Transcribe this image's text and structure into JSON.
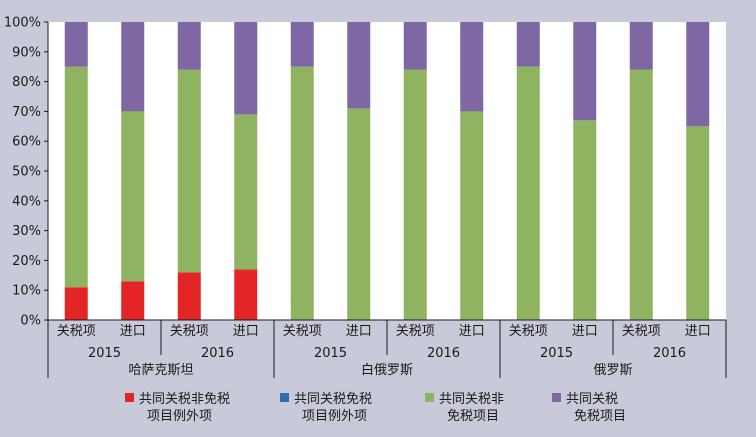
{
  "chart_data": {
    "type": "bar",
    "stacked": true,
    "ylim": [
      0,
      100
    ],
    "yticks": [
      "0%",
      "10%",
      "20%",
      "30%",
      "40%",
      "50%",
      "60%",
      "70%",
      "80%",
      "90%",
      "100%"
    ],
    "categories": [
      "关税项",
      "进口",
      "关税项",
      "进口",
      "关税项",
      "进口",
      "关税项",
      "进口",
      "关税项",
      "进口",
      "关税项",
      "进口"
    ],
    "years": [
      {
        "label": "2015",
        "span": [
          0,
          1
        ]
      },
      {
        "label": "2016",
        "span": [
          2,
          3
        ]
      },
      {
        "label": "2015",
        "span": [
          4,
          5
        ]
      },
      {
        "label": "2016",
        "span": [
          6,
          7
        ]
      },
      {
        "label": "2015",
        "span": [
          8,
          9
        ]
      },
      {
        "label": "2016",
        "span": [
          10,
          11
        ]
      }
    ],
    "countries": [
      {
        "label": "哈萨克斯坦",
        "span": [
          0,
          3
        ]
      },
      {
        "label": "白俄罗斯",
        "span": [
          4,
          7
        ]
      },
      {
        "label": "俄罗斯",
        "span": [
          8,
          11
        ]
      }
    ],
    "series": [
      {
        "name": "共同关税非免税项目例外项",
        "color": "#e32526",
        "values": [
          11,
          13,
          16,
          17,
          0,
          0,
          0,
          0,
          0,
          0,
          0,
          0
        ]
      },
      {
        "name": "共同关税免税项目例外项",
        "color": "#2a6fa8",
        "values": [
          0,
          0,
          0,
          0,
          0,
          0,
          0,
          0,
          0,
          0,
          0,
          0
        ]
      },
      {
        "name": "共同关税非免税项目",
        "color": "#8eb361",
        "values": [
          74,
          57,
          68,
          52,
          85,
          71,
          84,
          70,
          85,
          67,
          84,
          65
        ]
      },
      {
        "name": "共同关税免税项目",
        "color": "#7f67a4",
        "values": [
          15,
          30,
          16,
          31,
          15,
          29,
          16,
          30,
          15,
          33,
          16,
          35
        ]
      }
    ],
    "legend": {
      "position": "bottom",
      "items": [
        {
          "lines": [
            "共同关税非免税",
            "项目例外项"
          ],
          "color": "#e32526"
        },
        {
          "lines": [
            "共同关税免税",
            "项目例外项"
          ],
          "color": "#2a6fa8"
        },
        {
          "lines": [
            "共同关税非",
            "免税项目"
          ],
          "color": "#8eb361"
        },
        {
          "lines": [
            "共同关税",
            "免税项目"
          ],
          "color": "#7f67a4"
        }
      ]
    },
    "colors": {
      "background": "#c9cad9",
      "plot_bg": "#ffffff",
      "axis": "#1a1a1a"
    }
  }
}
